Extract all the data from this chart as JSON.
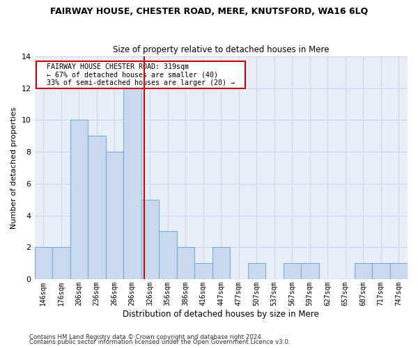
{
  "title": "FAIRWAY HOUSE, CHESTER ROAD, MERE, KNUTSFORD, WA16 6LQ",
  "subtitle": "Size of property relative to detached houses in Mere",
  "xlabel": "Distribution of detached houses by size in Mere",
  "ylabel": "Number of detached properties",
  "bin_labels": [
    "146sqm",
    "176sqm",
    "206sqm",
    "236sqm",
    "266sqm",
    "296sqm",
    "326sqm",
    "356sqm",
    "386sqm",
    "416sqm",
    "447sqm",
    "477sqm",
    "507sqm",
    "537sqm",
    "567sqm",
    "597sqm",
    "627sqm",
    "657sqm",
    "687sqm",
    "717sqm",
    "747sqm"
  ],
  "bar_heights": [
    2,
    2,
    10,
    9,
    8,
    12,
    5,
    3,
    2,
    1,
    2,
    0,
    1,
    0,
    1,
    1,
    0,
    0,
    1,
    1,
    1
  ],
  "bar_color": "#c9d9f0",
  "bar_edge_color": "#7ab0d4",
  "vline_x": 5.667,
  "vline_color": "#cc0000",
  "annotation_text": "  FAIRWAY HOUSE CHESTER ROAD: 319sqm  \n  ← 67% of detached houses are smaller (40)  \n  33% of semi-detached houses are larger (20) →  ",
  "annotation_box_color": "#ffffff",
  "annotation_box_edge": "#cc0000",
  "ylim": [
    0,
    14
  ],
  "yticks": [
    0,
    2,
    4,
    6,
    8,
    10,
    12,
    14
  ],
  "footnote1": "Contains HM Land Registry data © Crown copyright and database right 2024.",
  "footnote2": "Contains public sector information licensed under the Open Government Licence v3.0.",
  "grid_color": "#d0d8e8",
  "bg_color": "#e8eef8"
}
